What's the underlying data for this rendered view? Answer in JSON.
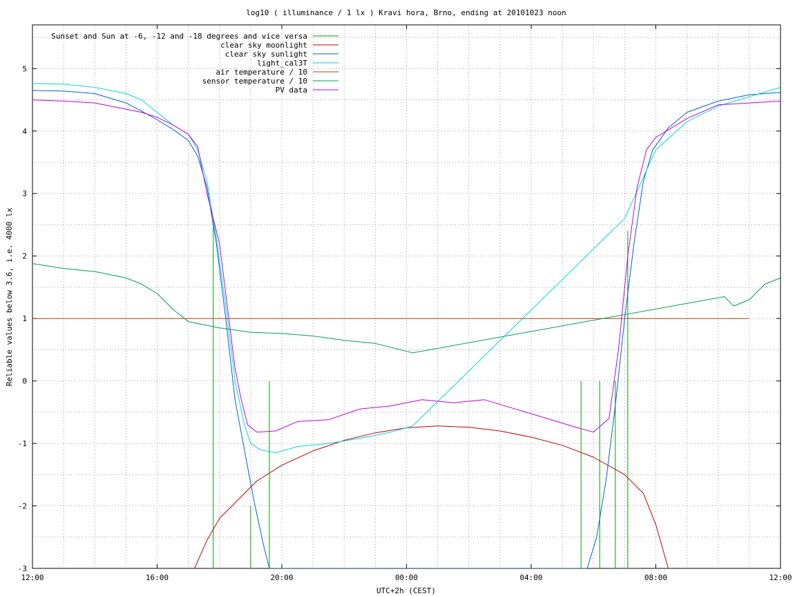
{
  "chart_data": {
    "type": "line",
    "title": "log10 ( illuminance / 1 lx ) Kravi hora, Brno, ending at 20101023 noon",
    "xlabel": "UTC+2h (CEST)",
    "ylabel": "Reliable values below 3.6, i.e. 4000 lx",
    "xlim": [
      0,
      24
    ],
    "ylim": [
      -3,
      5.7
    ],
    "x_unit": "hours since 12:00 (UTC+2h)",
    "grid": true,
    "legend_position": "top-left",
    "x_ticks": [
      {
        "value": 0,
        "label": "12:00"
      },
      {
        "value": 4,
        "label": "16:00"
      },
      {
        "value": 8,
        "label": "20:00"
      },
      {
        "value": 12,
        "label": "00:00"
      },
      {
        "value": 16,
        "label": "04:00"
      },
      {
        "value": 20,
        "label": "08:00"
      },
      {
        "value": 24,
        "label": "12:00"
      }
    ],
    "y_ticks": [
      {
        "value": -3,
        "label": "-3"
      },
      {
        "value": -2,
        "label": "-2"
      },
      {
        "value": -1,
        "label": "-1"
      },
      {
        "value": 0,
        "label": "0"
      },
      {
        "value": 1,
        "label": "1"
      },
      {
        "value": 2,
        "label": "2"
      },
      {
        "value": 3,
        "label": "3"
      },
      {
        "value": 4,
        "label": "4"
      },
      {
        "value": 5,
        "label": "5"
      }
    ],
    "x_grid_step": 1,
    "y_grid_step": 0.5,
    "series": [
      {
        "name": "Sunset and Sun at -6, -12 and -18 degrees and vice versa",
        "color": "#00a000",
        "style": "impulses",
        "points": [
          [
            5.8,
            2.6
          ],
          [
            7.0,
            -2.0
          ],
          [
            7.6,
            0.0
          ],
          [
            17.6,
            0.0
          ],
          [
            18.2,
            0.0
          ],
          [
            18.7,
            0.0
          ],
          [
            19.1,
            2.4
          ]
        ]
      },
      {
        "name": "clear sky moonlight",
        "color": "#c00000",
        "points": [
          [
            5.2,
            -3.0
          ],
          [
            5.6,
            -2.55
          ],
          [
            6.0,
            -2.2
          ],
          [
            6.6,
            -1.9
          ],
          [
            7.2,
            -1.6
          ],
          [
            8.0,
            -1.35
          ],
          [
            9.0,
            -1.12
          ],
          [
            10.0,
            -0.95
          ],
          [
            11.0,
            -0.83
          ],
          [
            12.0,
            -0.75
          ],
          [
            13.0,
            -0.72
          ],
          [
            14.0,
            -0.74
          ],
          [
            15.0,
            -0.8
          ],
          [
            16.0,
            -0.9
          ],
          [
            17.0,
            -1.03
          ],
          [
            18.0,
            -1.22
          ],
          [
            19.0,
            -1.5
          ],
          [
            19.6,
            -1.8
          ],
          [
            20.0,
            -2.3
          ],
          [
            20.4,
            -3.0
          ]
        ]
      },
      {
        "name": "clear sky sunlight",
        "color": "#0060d0",
        "points": [
          [
            0,
            4.65
          ],
          [
            1.0,
            4.64
          ],
          [
            2.0,
            4.6
          ],
          [
            3.0,
            4.45
          ],
          [
            3.5,
            4.32
          ],
          [
            4.0,
            4.18
          ],
          [
            4.5,
            4.03
          ],
          [
            5.0,
            3.85
          ],
          [
            5.3,
            3.6
          ],
          [
            5.6,
            3.1
          ],
          [
            5.9,
            2.2
          ],
          [
            6.2,
            1.0
          ],
          [
            6.5,
            -0.3
          ],
          [
            6.8,
            -1.1
          ],
          [
            7.1,
            -1.9
          ],
          [
            7.4,
            -2.6
          ],
          [
            7.6,
            -3.0
          ],
          [
            17.8,
            -3.0
          ],
          [
            18.1,
            -2.5
          ],
          [
            18.4,
            -1.6
          ],
          [
            18.7,
            -0.4
          ],
          [
            19.0,
            1.0
          ],
          [
            19.3,
            2.2
          ],
          [
            19.6,
            3.2
          ],
          [
            19.9,
            3.7
          ],
          [
            20.4,
            4.05
          ],
          [
            21.0,
            4.3
          ],
          [
            22.0,
            4.48
          ],
          [
            23.0,
            4.58
          ],
          [
            24.0,
            4.62
          ]
        ]
      },
      {
        "name": "light_cal3T",
        "color": "#00d8d8",
        "points": [
          [
            0,
            4.76
          ],
          [
            1.0,
            4.75
          ],
          [
            2.0,
            4.7
          ],
          [
            3.0,
            4.6
          ],
          [
            3.5,
            4.5
          ],
          [
            4.0,
            4.3
          ],
          [
            4.5,
            4.1
          ],
          [
            5.0,
            3.95
          ],
          [
            5.3,
            3.7
          ],
          [
            5.6,
            3.2
          ],
          [
            5.9,
            2.3
          ],
          [
            6.2,
            1.2
          ],
          [
            6.5,
            0.0
          ],
          [
            6.8,
            -0.7
          ],
          [
            7.0,
            -1.0
          ],
          [
            7.3,
            -1.1
          ],
          [
            7.8,
            -1.15
          ],
          [
            8.5,
            -1.05
          ],
          [
            9.5,
            -1.0
          ],
          [
            10.5,
            -0.92
          ],
          [
            11.5,
            -0.82
          ],
          [
            12.2,
            -0.72
          ],
          [
            19.0,
            2.6
          ],
          [
            20.0,
            3.7
          ],
          [
            21.0,
            4.15
          ],
          [
            22.0,
            4.4
          ],
          [
            23.0,
            4.55
          ],
          [
            24.0,
            4.7
          ]
        ]
      },
      {
        "name": "air temperature / 10",
        "color": "#c04000",
        "points": [
          [
            0,
            1.0
          ],
          [
            23.0,
            1.0
          ]
        ]
      },
      {
        "name": "sensor temperature / 10",
        "color": "#00a050",
        "points": [
          [
            0,
            1.88
          ],
          [
            1.0,
            1.8
          ],
          [
            2.0,
            1.75
          ],
          [
            3.0,
            1.65
          ],
          [
            3.5,
            1.55
          ],
          [
            4.0,
            1.4
          ],
          [
            4.5,
            1.15
          ],
          [
            5.0,
            0.95
          ],
          [
            6.0,
            0.85
          ],
          [
            7.0,
            0.78
          ],
          [
            8.0,
            0.76
          ],
          [
            9.0,
            0.72
          ],
          [
            10.0,
            0.65
          ],
          [
            11.0,
            0.6
          ],
          [
            12.2,
            0.45
          ],
          [
            22.2,
            1.35
          ],
          [
            22.5,
            1.2
          ],
          [
            23.0,
            1.3
          ],
          [
            23.5,
            1.55
          ],
          [
            24.0,
            1.65
          ]
        ]
      },
      {
        "name": "PV data",
        "color": "#c000e0",
        "points": [
          [
            0,
            4.5
          ],
          [
            1.0,
            4.48
          ],
          [
            2.0,
            4.45
          ],
          [
            3.0,
            4.35
          ],
          [
            3.5,
            4.3
          ],
          [
            4.0,
            4.22
          ],
          [
            4.5,
            4.1
          ],
          [
            5.0,
            3.95
          ],
          [
            5.3,
            3.75
          ],
          [
            5.6,
            3.0
          ],
          [
            6.0,
            2.2
          ],
          [
            6.3,
            1.0
          ],
          [
            6.5,
            0.2
          ],
          [
            6.7,
            -0.3
          ],
          [
            6.9,
            -0.7
          ],
          [
            7.2,
            -0.82
          ],
          [
            7.8,
            -0.8
          ],
          [
            8.5,
            -0.65
          ],
          [
            9.5,
            -0.62
          ],
          [
            10.5,
            -0.45
          ],
          [
            11.5,
            -0.4
          ],
          [
            12.5,
            -0.3
          ],
          [
            13.5,
            -0.35
          ],
          [
            14.5,
            -0.3
          ],
          [
            15.5,
            -0.45
          ],
          [
            16.5,
            -0.6
          ],
          [
            17.5,
            -0.75
          ],
          [
            18.0,
            -0.82
          ],
          [
            18.5,
            -0.6
          ],
          [
            18.8,
            0.5
          ],
          [
            19.1,
            2.0
          ],
          [
            19.4,
            3.1
          ],
          [
            19.7,
            3.7
          ],
          [
            20.0,
            3.9
          ],
          [
            21.0,
            4.2
          ],
          [
            22.0,
            4.42
          ],
          [
            23.0,
            4.45
          ],
          [
            24.0,
            4.48
          ]
        ]
      }
    ]
  }
}
